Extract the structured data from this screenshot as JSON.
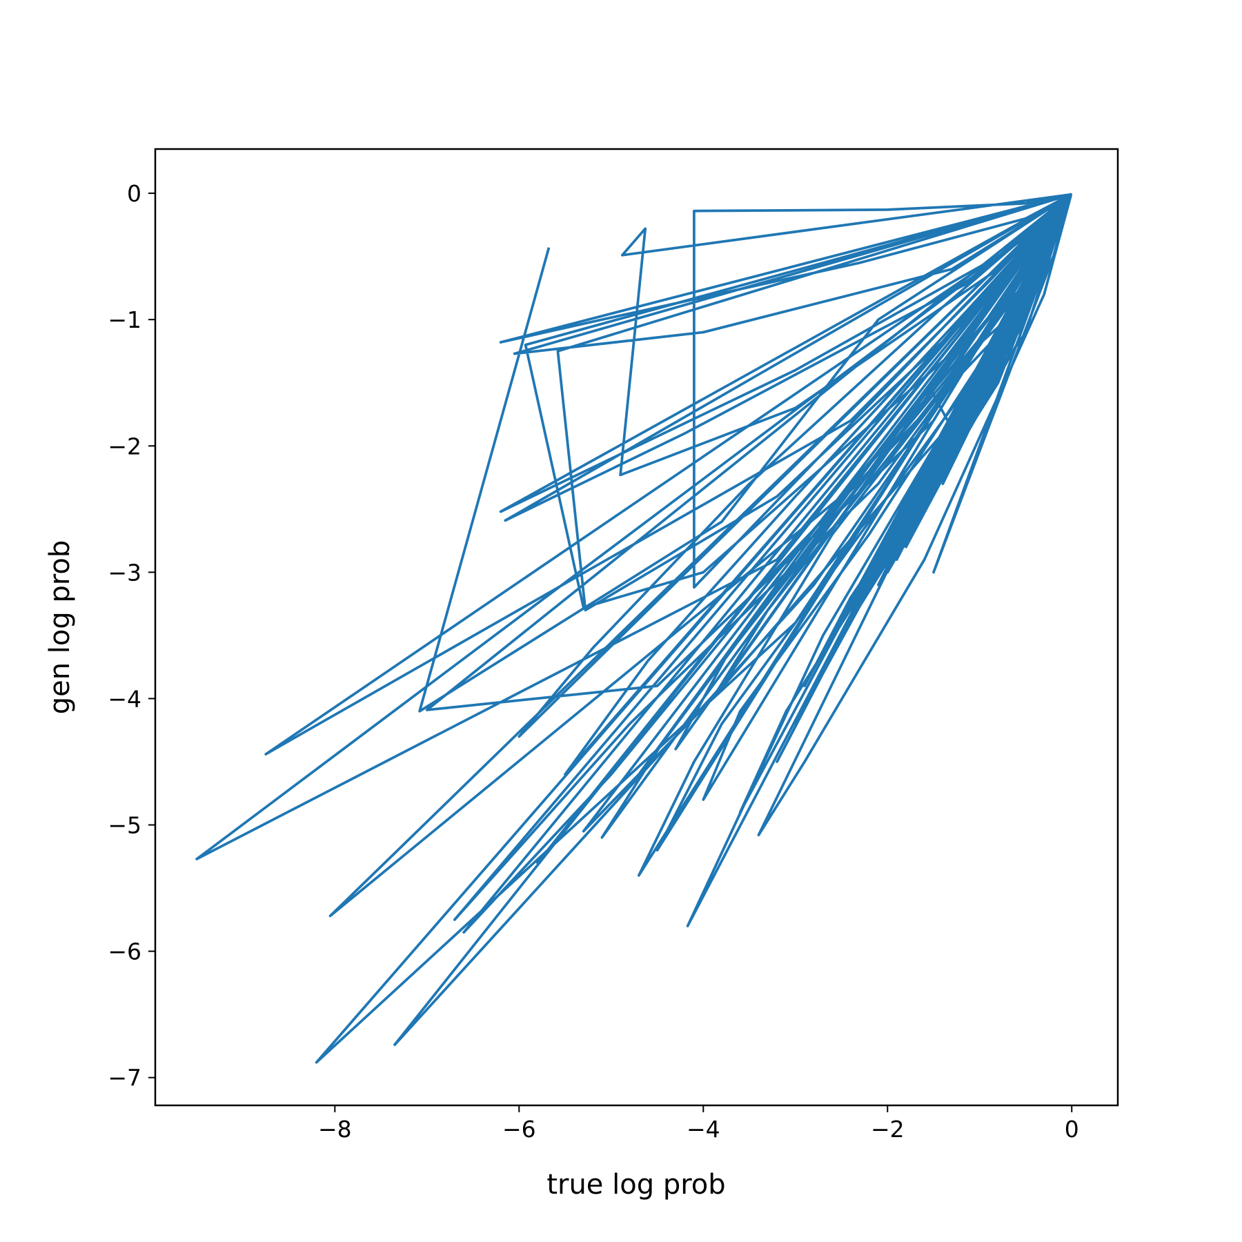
{
  "chart_data": {
    "type": "line",
    "title": "",
    "xlabel": "true log prob",
    "ylabel": "gen log prob",
    "xlim": [
      -9.95,
      0.5
    ],
    "ylim": [
      -7.22,
      0.35
    ],
    "xticks": [
      -8,
      -6,
      -4,
      -2,
      0
    ],
    "yticks": [
      0,
      -1,
      -2,
      -3,
      -4,
      -5,
      -6,
      -7
    ],
    "xtick_labels": [
      "−8",
      "−6",
      "−4",
      "−2",
      "0"
    ],
    "ytick_labels": [
      "0",
      "−1",
      "−2",
      "−3",
      "−4",
      "−5",
      "−6",
      "−7"
    ],
    "grid": false,
    "legend": "none",
    "series_color": "#1f77b4",
    "series": [
      {
        "x": [
          -5.68,
          -7.08,
          -3.8,
          -2.1,
          -0.01,
          -0.6,
          -1.5,
          -0.2,
          -0.02,
          -0.4,
          -1.1,
          -0.05,
          -9.5,
          -3.2,
          -1.2,
          -0.1,
          -0.01,
          -0.5,
          -1.4,
          -0.1,
          -8.75,
          -2.4,
          -0.9,
          -0.02,
          -0.3,
          -1.0,
          -0.03,
          -8.05,
          -2.5,
          -0.7,
          -0.02,
          -0.9,
          -2.0,
          -0.3,
          -0.01,
          -8.2,
          -3.0,
          -1.1,
          -0.05,
          -0.8,
          -2.2,
          -0.4,
          -0.01,
          -7.35,
          -2.8,
          -0.9,
          -0.02,
          -0.6,
          -1.8,
          -0.2,
          -0.01,
          -5.93,
          -5.3,
          -4.0,
          -1.2,
          -0.03,
          -0.5,
          -1.7,
          -0.15,
          -0.01,
          -4.17,
          -2.7,
          -0.6,
          -0.02,
          -1.0,
          -2.4,
          -0.5,
          -0.01,
          -6.2,
          -3.0,
          -0.8,
          -0.02,
          -0.9,
          -1.9,
          -0.2,
          -0.01,
          -7.0,
          -4.5,
          -1.5,
          -0.05,
          -0.3,
          -1.3,
          -0.1,
          -0.01,
          -6.2,
          -5.1,
          -2.3,
          -0.5,
          -0.01,
          -0.7,
          -0.3,
          -0.01,
          -5.58,
          -5.28,
          -3.2,
          -1.0,
          -0.01,
          -0.45,
          -0.9,
          -0.05,
          -0.01,
          -6.05,
          -4.0,
          -1.3,
          -0.02,
          -0.4,
          -1.2,
          -0.1,
          -0.01,
          -4.1,
          -4.1,
          -2.0,
          -0.5,
          -0.01,
          -0.3,
          -0.6,
          -0.01,
          -4.88,
          -4.63,
          -4.9,
          -3.0,
          -0.8,
          -0.02,
          -0.6,
          -1.0,
          -0.01,
          -6.15,
          -4.2,
          -1.1,
          -0.05,
          -0.4,
          -0.9,
          -0.02,
          -5.8,
          -3.5,
          -0.9,
          -0.01,
          -0.25,
          -0.6,
          -0.01,
          -3.4,
          -2.9,
          -1.6,
          -0.3,
          -0.01,
          -0.5,
          -1.9,
          -0.05,
          -0.01,
          -6.7,
          -4.8,
          -2.1,
          -0.5,
          -0.02,
          -0.8,
          -2.2,
          -0.3,
          -0.01,
          -5.3,
          -3.9,
          -1.4,
          -0.2,
          -0.01,
          -1.2,
          -1.54,
          -0.55,
          -0.01,
          -4.7,
          -4.1,
          -2.6,
          -0.8,
          -0.03,
          -0.5,
          -1.3,
          -0.08,
          -0.01,
          -6.6,
          -5.0,
          -3.2,
          -1.2,
          -0.05,
          -0.9,
          -2.0,
          -0.3,
          -0.01,
          -4.0,
          -3.6,
          -2.2,
          -0.6,
          -0.01,
          -0.8,
          -2.1,
          -0.2,
          -0.01,
          -5.1,
          -4.4,
          -2.9,
          -1.0,
          -0.02,
          -0.6,
          -1.6,
          -0.05,
          -0.01,
          -3.6,
          -3.1,
          -1.8,
          -0.4,
          -0.01,
          -0.7,
          -1.8,
          -0.1,
          -0.01,
          -6.0,
          -5.2,
          -3.5,
          -1.4,
          -0.03,
          -1.1,
          -2.3,
          -0.4,
          -0.01,
          -4.5,
          -3.8,
          -2.4,
          -0.7,
          -0.02,
          -0.9,
          -2.0,
          -0.2,
          -0.01,
          -3.9,
          -3.3,
          -2.0,
          -0.5,
          -0.01,
          -0.4,
          -1.1,
          -0.05,
          -0.01,
          -5.5,
          -4.6,
          -3.0,
          -1.1,
          -0.02,
          -0.8,
          -1.7,
          -0.15,
          -0.01,
          -3.2,
          -2.7,
          -1.5,
          -0.3,
          -0.01,
          -0.6,
          -1.4,
          -0.07,
          -0.01,
          -4.8,
          -4.0,
          -2.5,
          -0.8,
          -0.02,
          -1.0,
          -2.1,
          -0.3,
          -0.01,
          -3.0,
          -2.5,
          -1.3,
          -0.2,
          -0.01,
          -0.5,
          -1.2,
          -0.05,
          -0.01,
          -4.3,
          -3.7,
          -2.3,
          -0.6,
          -0.02,
          -0.9,
          -1.9,
          -0.2,
          -0.01,
          -2.9,
          -2.4,
          -1.2,
          -0.2,
          -0.01
        ],
        "y": [
          -0.44,
          -4.1,
          -2.6,
          -1.0,
          -0.01,
          -1.2,
          -3.0,
          -0.5,
          -0.02,
          -0.8,
          -1.8,
          -0.1,
          -5.27,
          -2.9,
          -1.1,
          -0.05,
          -0.01,
          -0.9,
          -2.2,
          -0.15,
          -4.44,
          -1.8,
          -0.7,
          -0.02,
          -0.6,
          -1.4,
          -0.03,
          -5.72,
          -2.4,
          -0.8,
          -0.02,
          -1.5,
          -3.0,
          -0.5,
          -0.01,
          -6.88,
          -3.4,
          -1.3,
          -0.06,
          -1.3,
          -3.1,
          -0.6,
          -0.01,
          -6.74,
          -3.1,
          -1.1,
          -0.03,
          -1.0,
          -2.6,
          -0.35,
          -0.01,
          -1.2,
          -3.28,
          -3.0,
          -1.2,
          -0.03,
          -1.1,
          -2.4,
          -0.25,
          -0.01,
          -5.8,
          -3.5,
          -0.9,
          -0.02,
          -1.6,
          -3.3,
          -0.8,
          -0.01,
          -2.52,
          -1.4,
          -0.5,
          -0.02,
          -1.4,
          -2.6,
          -0.3,
          -0.01,
          -4.09,
          -3.9,
          -1.8,
          -0.05,
          -0.5,
          -2.0,
          -0.15,
          -0.01,
          -1.18,
          -1.0,
          -0.55,
          -0.2,
          -0.01,
          -1.2,
          -0.6,
          -0.01,
          -1.25,
          -3.3,
          -2.4,
          -0.9,
          -0.01,
          -0.9,
          -1.5,
          -0.08,
          -0.01,
          -1.27,
          -1.1,
          -0.6,
          -0.02,
          -0.8,
          -1.9,
          -0.15,
          -0.01,
          -3.12,
          -0.14,
          -0.13,
          -0.08,
          -0.01,
          -0.6,
          -1.2,
          -0.01,
          -0.49,
          -0.28,
          -2.23,
          -1.7,
          -0.6,
          -0.02,
          -1.0,
          -1.6,
          -0.01,
          -2.59,
          -1.9,
          -0.7,
          -0.05,
          -0.8,
          -1.5,
          -0.02,
          -5.3,
          -3.2,
          -1.2,
          -0.01,
          -0.5,
          -1.1,
          -0.01,
          -5.08,
          -4.5,
          -2.9,
          -0.8,
          -0.02,
          -0.9,
          -2.9,
          -0.1,
          -0.01,
          -5.75,
          -4.2,
          -2.3,
          -0.7,
          -0.03,
          -1.4,
          -3.0,
          -0.5,
          -0.01,
          -5.05,
          -4.0,
          -1.9,
          -0.4,
          -0.01,
          -2.0,
          -1.54,
          -0.9,
          -0.01,
          -5.4,
          -4.5,
          -2.7,
          -1.0,
          -0.04,
          -1.0,
          -2.0,
          -0.12,
          -0.01,
          -5.85,
          -4.6,
          -3.0,
          -1.3,
          -0.06,
          -1.6,
          -2.9,
          -0.5,
          -0.01,
          -4.8,
          -4.1,
          -2.7,
          -0.9,
          -0.02,
          -1.5,
          -3.0,
          -0.3,
          -0.01,
          -5.1,
          -4.3,
          -2.8,
          -1.0,
          -0.03,
          -1.2,
          -2.5,
          -0.1,
          -0.01,
          -4.9,
          -4.1,
          -2.6,
          -0.8,
          -0.02,
          -1.3,
          -2.8,
          -0.2,
          -0.01,
          -4.3,
          -3.6,
          -2.3,
          -0.9,
          -0.04,
          -1.8,
          -3.2,
          -0.6,
          -0.01,
          -5.2,
          -4.2,
          -2.8,
          -1.1,
          -0.03,
          -1.6,
          -3.0,
          -0.35,
          -0.01,
          -4.0,
          -3.3,
          -2.1,
          -0.7,
          -0.02,
          -0.8,
          -1.8,
          -0.08,
          -0.01,
          -4.6,
          -3.7,
          -2.4,
          -0.9,
          -0.03,
          -1.4,
          -2.6,
          -0.25,
          -0.01,
          -4.5,
          -3.8,
          -2.2,
          -0.6,
          -0.01,
          -1.1,
          -2.3,
          -0.12,
          -0.01,
          -4.7,
          -3.9,
          -2.5,
          -0.9,
          -0.03,
          -1.7,
          -3.1,
          -0.45,
          -0.01,
          -4.2,
          -3.5,
          -2.1,
          -0.5,
          -0.01,
          -0.9,
          -2.0,
          -0.08,
          -0.01,
          -4.4,
          -3.6,
          -2.3,
          -0.8,
          -0.03,
          -1.5,
          -2.8,
          -0.3,
          -0.01,
          -3.9,
          -3.2,
          -1.9,
          -0.4,
          -0.01
        ]
      }
    ]
  }
}
